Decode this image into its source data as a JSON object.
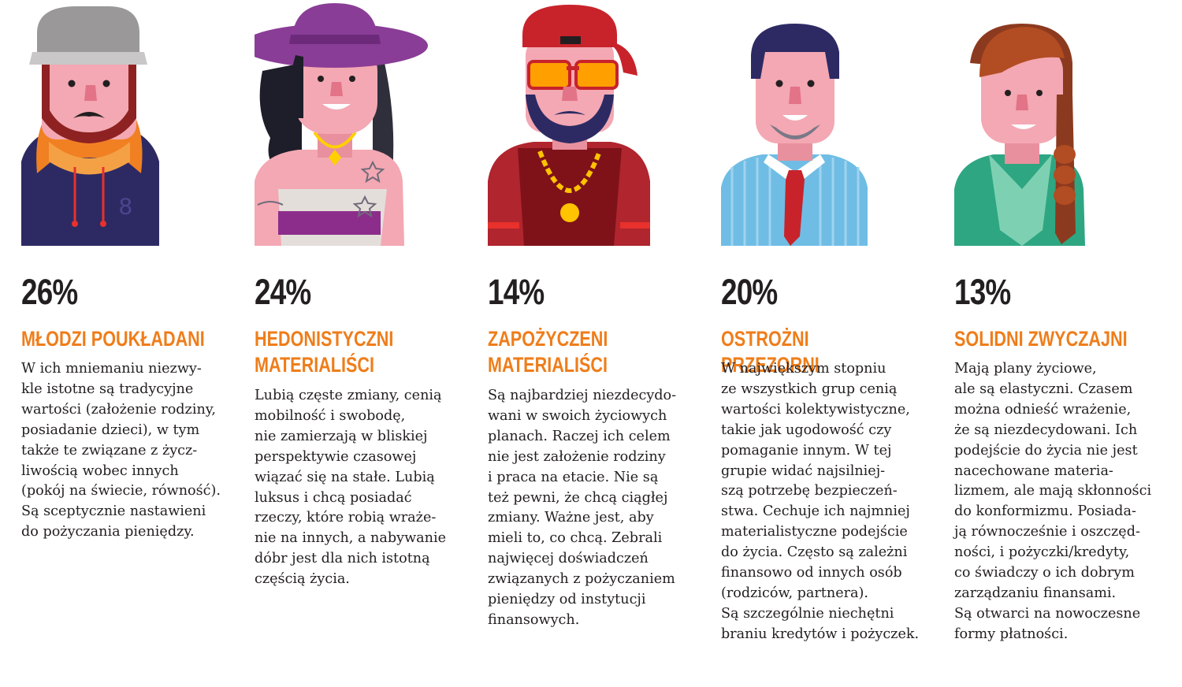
{
  "segments": [
    {
      "percent": "26%",
      "title": "MŁODZI POUKŁADANI",
      "text": "W ich mniemaniu niezwy-\nkle istotne są tradycyjne\nwartości (założenie rodziny,\nposiadanie dzieci), w tym\ntakże te związane z życz-\nliwością wobec innych\n(pokój na świecie, równość).\nSą sceptycznie nastawieni\ndo pożyczania pieniędzy.",
      "avatar": "young-man-cap-hoodie-icon"
    },
    {
      "percent": "24%",
      "title": "HEDONISTYCZNI\nMATERIALIŚCI",
      "text": "Lubią częste zmiany, cenią\nmobilność i swobodę,\nnie zamierzają w bliskiej\nperspektywie czasowej\nwiązać się na stałe. Lubią\nluksus i chcą posiadać\nrzeczy, które robią wraże-\nnie na innych, a nabywanie\ndóbr jest dla nich istotną\nczęścią życia.",
      "avatar": "woman-purple-hat-icon"
    },
    {
      "percent": "14%",
      "title": "ZAPOŻYCZENI\nMATERIALIŚCI",
      "text": "Są najbardziej niezdecydo-\nwani w swoich życiowych\nplanach. Raczej ich celem\nnie jest założenie rodziny\ni praca na etacie. Nie są\nteż pewni, że chcą ciągłej\nzmiany. Ważne jest, aby\nmieli to, co chcą. Zebrali\nnajwięcej doświadczeń\nzwiązanych z pożyczaniem\npieniędzy od instytucji\nfinansowych.",
      "avatar": "man-cap-sunglasses-chain-icon"
    },
    {
      "percent": "20%",
      "title": "OSTROŻNI PRZEZORNI",
      "text": "W największym stopniu\nze wszystkich grup cenią\nwartości kolektywistyczne,\ntakie jak ugodowość czy\npomaganie innym. W tej\ngrupie widać najsilniej-\nszą potrzebę bezpieczeń-\nstwa. Cechuje ich najmniej\nmaterialistyczne podejście\ndo życia. Często są zależni\nfinansowo od innych osób\n(rodziców, partnera).\nSą szczególnie niechętni\nbraniu kredytów i pożyczek.",
      "avatar": "man-shirt-tie-icon"
    },
    {
      "percent": "13%",
      "title": "SOLIDNI ZWYCZAJNI",
      "text": "Mają plany życiowe,\nale są elastyczni. Czasem\nmożna odnieść wrażenie,\nże są niezdecydowani. Ich\npodejście do życia nie jest\nnacechowane materia-\nlizmem, ale mają skłonności\ndo konformizmu. Posiada-\nją równocześnie i oszczęd-\nności, i pożyczki/kredyty,\nco świadczy o ich dobrym\nzarządzaniu finansami.\nSą otwarci na nowoczesne\nformy płatności.",
      "avatar": "woman-braid-green-jacket-icon"
    }
  ],
  "colors": {
    "accent": "#ef7d1a",
    "text": "#231f20",
    "skin": "#f3a8b3"
  }
}
